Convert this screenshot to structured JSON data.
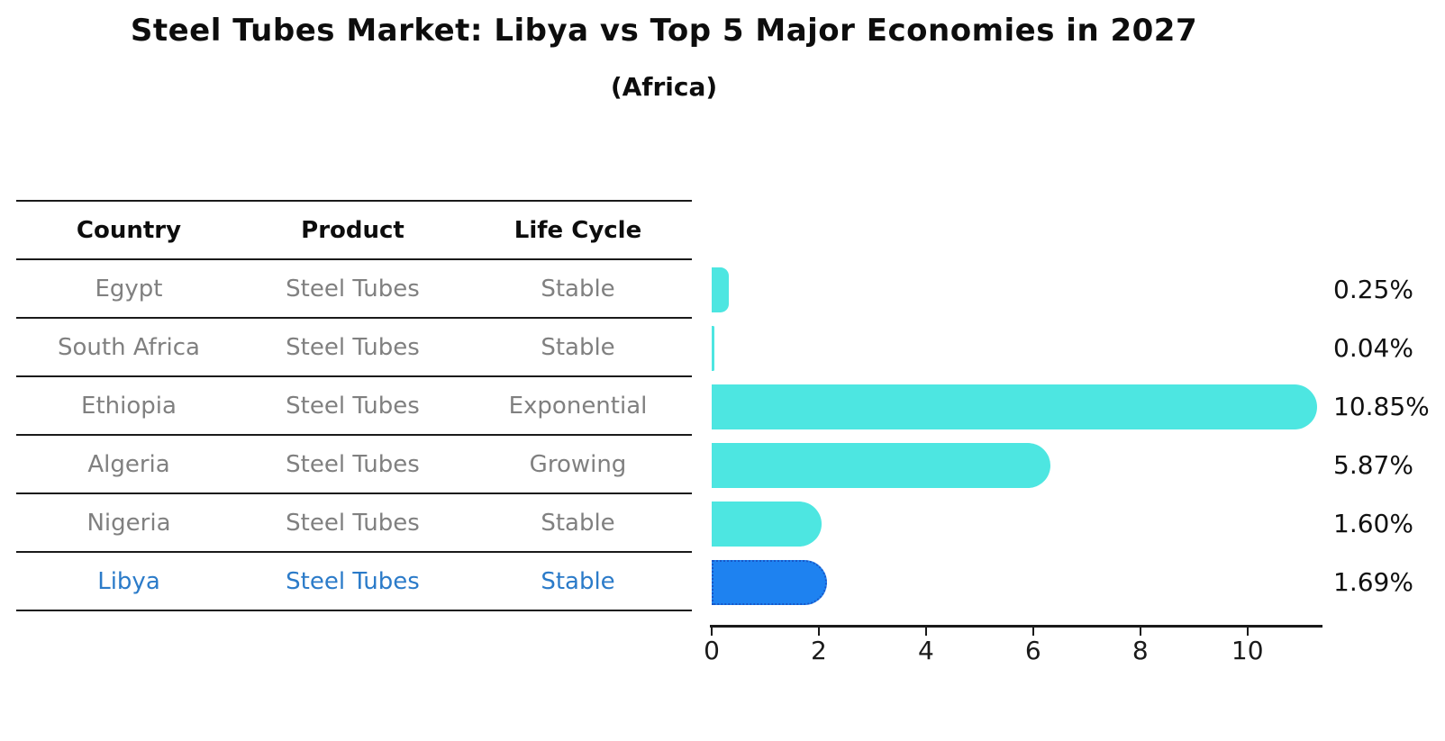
{
  "title": "Steel Tubes Market: Libya vs Top 5 Major Economies in 2027",
  "subtitle": "(Africa)",
  "table": {
    "headers": [
      "Country",
      "Product",
      "Life Cycle"
    ],
    "rows": [
      {
        "country": "Egypt",
        "product": "Steel Tubes",
        "life_cycle": "Stable",
        "highlight": false
      },
      {
        "country": "South Africa",
        "product": "Steel Tubes",
        "life_cycle": "Stable",
        "highlight": false
      },
      {
        "country": "Ethiopia",
        "product": "Steel Tubes",
        "life_cycle": "Exponential",
        "highlight": false
      },
      {
        "country": "Algeria",
        "product": "Steel Tubes",
        "life_cycle": "Growing",
        "highlight": false
      },
      {
        "country": "Nigeria",
        "product": "Steel Tubes",
        "life_cycle": "Stable",
        "highlight": false
      },
      {
        "country": "Libya",
        "product": "Steel Tubes",
        "life_cycle": "Stable",
        "highlight": true
      }
    ]
  },
  "chart_data": {
    "type": "bar",
    "orientation": "horizontal",
    "title": "Steel Tubes Market: Libya vs Top 5 Major Economies in 2027",
    "subtitle": "(Africa)",
    "categories": [
      "Egypt",
      "South Africa",
      "Ethiopia",
      "Algeria",
      "Nigeria",
      "Libya"
    ],
    "values": [
      0.25,
      0.04,
      10.85,
      5.87,
      1.6,
      1.69
    ],
    "value_labels": [
      "0.25%",
      "0.04%",
      "10.85%",
      "5.87%",
      "1.60%",
      "1.69%"
    ],
    "unit": "percent market share",
    "x_ticks": [
      0,
      2,
      4,
      6,
      8,
      10
    ],
    "xlim": [
      0,
      11.4
    ],
    "grid": false,
    "legend": false,
    "bar_color": "#4de6e1",
    "highlight_bar_color": "#1e82f0",
    "highlight_text_color": "#2b7bc9",
    "highlight_index": 5
  }
}
